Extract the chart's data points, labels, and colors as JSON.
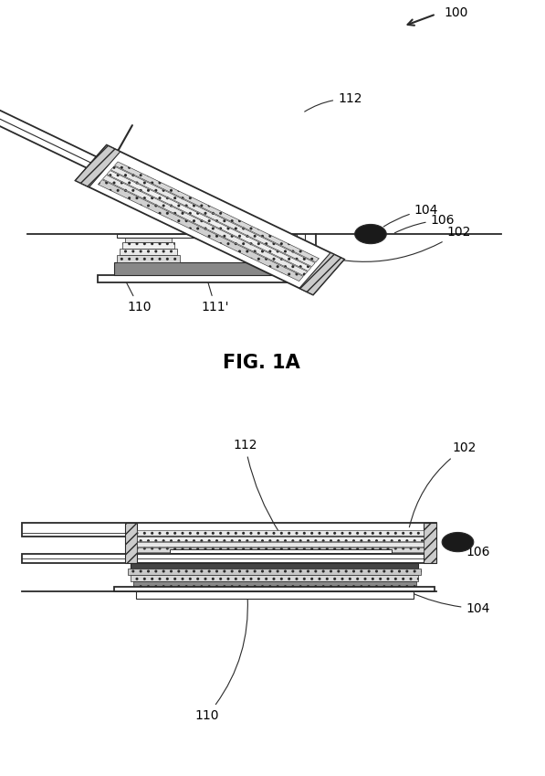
{
  "fig_width": 5.97,
  "fig_height": 8.49,
  "background_color": "#ffffff",
  "label_fontsize": 10,
  "caption_fontsize": 15,
  "line_color": "#2a2a2a",
  "dark_fill": "#444444",
  "med_fill": "#888888",
  "light_fill": "#cccccc",
  "hatch_fill": "#aaaaaa",
  "ball_color": "#1a1a1a"
}
